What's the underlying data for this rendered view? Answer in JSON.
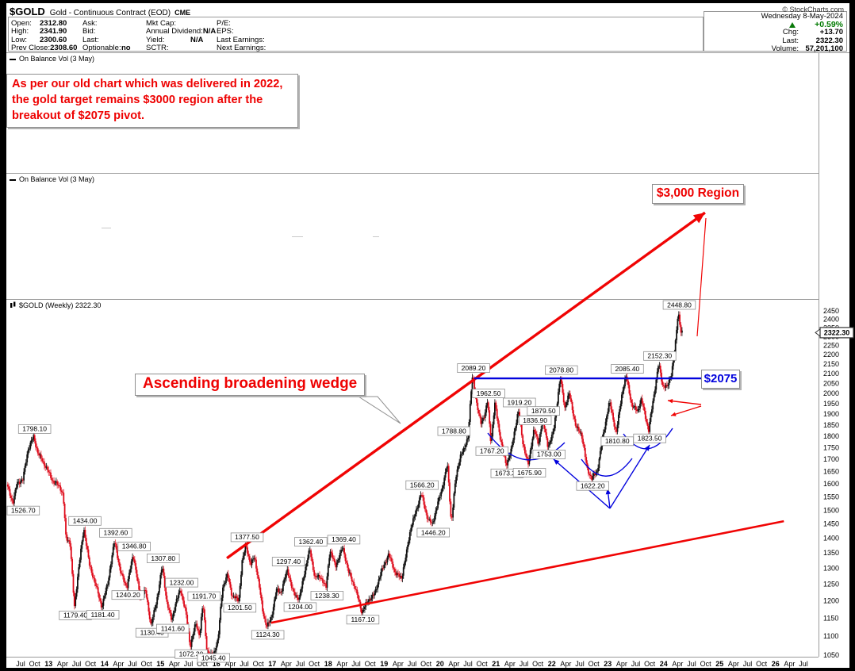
{
  "header": {
    "symbol": "$GOLD",
    "name": "Gold - Continuous Contract (EOD)",
    "exchange": "CME",
    "copyright": "© StockCharts.com",
    "date": "Wednesday 8-May-2024",
    "change_pct": "+0.59%",
    "col1": [
      {
        "label": "Open:",
        "value": "2312.80"
      },
      {
        "label": "High:",
        "value": "2341.90"
      },
      {
        "label": "Low:",
        "value": "2300.60"
      },
      {
        "label": "Prev Close:",
        "value": "2308.60"
      }
    ],
    "col2": [
      {
        "label": "Ask:",
        "value": ""
      },
      {
        "label": "Bid:",
        "value": ""
      },
      {
        "label": "Last:",
        "value": ""
      },
      {
        "label": "Optionable:",
        "value": "no"
      }
    ],
    "col3": [
      {
        "label": "Mkt Cap:",
        "value": ""
      },
      {
        "label": "Annual Dividend:",
        "value": "N/A"
      },
      {
        "label": "Yield:",
        "value": "N/A"
      },
      {
        "label": "SCTR:",
        "value": ""
      }
    ],
    "col4": [
      {
        "label": "P/E:",
        "value": ""
      },
      {
        "label": "EPS:",
        "value": ""
      },
      {
        "label": "Last Earnings:",
        "value": ""
      },
      {
        "label": "Next Earnings:",
        "value": ""
      }
    ],
    "chg_label": "Chg:",
    "chg_value": "+13.70",
    "last_label": "Last:",
    "last_value": "2322.30",
    "vol_label": "Volume:",
    "vol_value": "57,201,100"
  },
  "panels": {
    "obv1": "On Balance Vol (3 May)",
    "obv2": "On Balance Vol (3 May)",
    "price": "$GOLD (Weekly) 2322.30"
  },
  "annotations": {
    "note1": "As per our old chart which was delivered in 2022,",
    "note2": "the gold target remains $3000 region after the",
    "note3": "breakout of $2075 pivot.",
    "region": "$3,000 Region",
    "wedge": "Ascending broadening wedge",
    "pivot": "$2075",
    "last_price_tag": "2322.30"
  },
  "colors": {
    "annotation_red": "#f00404",
    "candle_red": "#dd0414",
    "candle_black": "#111111",
    "annotation_blue": "#0202dd",
    "green": "#0a7a0a"
  },
  "chart_data": {
    "type": "candlestick",
    "instrument": "$GOLD Gold - Continuous Contract (EOD) CME",
    "interval": "weekly",
    "scale": "log",
    "last_close": 2322.3,
    "y_axis": {
      "ticks": [
        2450,
        2400,
        2350,
        2300,
        2250,
        2200,
        2150,
        2100,
        2050,
        2000,
        1950,
        1900,
        1850,
        1800,
        1750,
        1700,
        1650,
        1600,
        1550,
        1500,
        1450,
        1400,
        1350,
        1300,
        1250,
        1200,
        1150,
        1100,
        1050
      ]
    },
    "x_axis": {
      "start_t": 2012.5,
      "step": 0.25,
      "labels": [
        "Jul",
        "Oct",
        "13",
        "Apr",
        "Jul",
        "Oct",
        "14",
        "Apr",
        "Jul",
        "Oct",
        "15",
        "Apr",
        "Jul",
        "Oct",
        "16",
        "Apr",
        "Jul",
        "Oct",
        "17",
        "Apr",
        "Jul",
        "Oct",
        "18",
        "Apr",
        "Jul",
        "Oct",
        "19",
        "Apr",
        "Jul",
        "Oct",
        "20",
        "Apr",
        "Jul",
        "Oct",
        "21",
        "Apr",
        "Jul",
        "Oct",
        "22",
        "Apr",
        "Jul",
        "Oct",
        "23",
        "Apr",
        "Jul",
        "Oct",
        "24",
        "Apr",
        "Jul",
        "Oct",
        "25",
        "Apr",
        "Jul",
        "Oct",
        "26",
        "Apr",
        "Jul"
      ]
    },
    "anchors": [
      [
        2012.27,
        1598
      ],
      [
        2012.38,
        1526.7
      ],
      [
        2012.46,
        1605
      ],
      [
        2012.56,
        1617
      ],
      [
        2012.65,
        1740
      ],
      [
        2012.75,
        1798.1
      ],
      [
        2012.83,
        1725
      ],
      [
        2012.92,
        1690
      ],
      [
        2013.0,
        1655
      ],
      [
        2013.1,
        1610
      ],
      [
        2013.22,
        1590
      ],
      [
        2013.28,
        1555
      ],
      [
        2013.33,
        1400
      ],
      [
        2013.4,
        1390
      ],
      [
        2013.48,
        1179.4
      ],
      [
        2013.55,
        1290
      ],
      [
        2013.65,
        1434.0
      ],
      [
        2013.75,
        1310
      ],
      [
        2013.85,
        1255
      ],
      [
        2013.97,
        1181.4
      ],
      [
        2014.08,
        1255
      ],
      [
        2014.2,
        1392.6
      ],
      [
        2014.3,
        1290
      ],
      [
        2014.42,
        1240.2
      ],
      [
        2014.53,
        1346.8
      ],
      [
        2014.65,
        1215
      ],
      [
        2014.75,
        1230
      ],
      [
        2014.85,
        1130.4
      ],
      [
        2014.95,
        1195
      ],
      [
        2015.05,
        1307.8
      ],
      [
        2015.13,
        1200
      ],
      [
        2015.22,
        1141.6
      ],
      [
        2015.3,
        1200
      ],
      [
        2015.38,
        1232.0
      ],
      [
        2015.47,
        1170
      ],
      [
        2015.55,
        1072.3
      ],
      [
        2015.65,
        1135
      ],
      [
        2015.72,
        1103
      ],
      [
        2015.78,
        1191.7
      ],
      [
        2015.85,
        1062
      ],
      [
        2015.95,
        1045.4
      ],
      [
        2016.05,
        1090
      ],
      [
        2016.13,
        1240
      ],
      [
        2016.22,
        1280
      ],
      [
        2016.3,
        1215
      ],
      [
        2016.42,
        1201.5
      ],
      [
        2016.48,
        1320
      ],
      [
        2016.55,
        1377.5
      ],
      [
        2016.63,
        1310
      ],
      [
        2016.7,
        1340
      ],
      [
        2016.78,
        1250
      ],
      [
        2016.85,
        1170
      ],
      [
        2016.92,
        1124.3
      ],
      [
        2017.0,
        1150
      ],
      [
        2017.1,
        1235
      ],
      [
        2017.18,
        1226
      ],
      [
        2017.29,
        1297.4
      ],
      [
        2017.38,
        1230
      ],
      [
        2017.5,
        1204.0
      ],
      [
        2017.6,
        1290
      ],
      [
        2017.69,
        1362.4
      ],
      [
        2017.78,
        1270
      ],
      [
        2017.88,
        1275
      ],
      [
        2017.98,
        1238.3
      ],
      [
        2018.05,
        1360
      ],
      [
        2018.15,
        1307
      ],
      [
        2018.28,
        1369.4
      ],
      [
        2018.38,
        1290
      ],
      [
        2018.5,
        1240
      ],
      [
        2018.62,
        1167.1
      ],
      [
        2018.73,
        1200
      ],
      [
        2018.85,
        1220
      ],
      [
        2018.95,
        1280
      ],
      [
        2019.1,
        1346
      ],
      [
        2019.22,
        1285
      ],
      [
        2019.33,
        1269
      ],
      [
        2019.42,
        1350
      ],
      [
        2019.5,
        1440
      ],
      [
        2019.6,
        1500
      ],
      [
        2019.68,
        1566.2
      ],
      [
        2019.78,
        1480
      ],
      [
        2019.88,
        1446.2
      ],
      [
        2019.97,
        1520
      ],
      [
        2020.05,
        1575
      ],
      [
        2020.15,
        1680
      ],
      [
        2020.22,
        1451
      ],
      [
        2020.3,
        1620
      ],
      [
        2020.38,
        1715
      ],
      [
        2020.45,
        1740
      ],
      [
        2020.52,
        1800
      ],
      [
        2020.6,
        2089.2
      ],
      [
        2020.68,
        1940
      ],
      [
        2020.75,
        1857
      ],
      [
        2020.82,
        1900
      ],
      [
        2020.87,
        1962.5
      ],
      [
        2020.93,
        1767.2
      ],
      [
        2021.0,
        1950
      ],
      [
        2021.08,
        1815
      ],
      [
        2021.2,
        1673.3
      ],
      [
        2021.3,
        1745
      ],
      [
        2021.42,
        1919.2
      ],
      [
        2021.5,
        1770
      ],
      [
        2021.6,
        1675.9
      ],
      [
        2021.7,
        1836.9
      ],
      [
        2021.78,
        1760
      ],
      [
        2021.85,
        1879.5
      ],
      [
        2021.95,
        1753.0
      ],
      [
        2022.05,
        1820
      ],
      [
        2022.17,
        2078.8
      ],
      [
        2022.25,
        1930
      ],
      [
        2022.33,
        1998
      ],
      [
        2022.45,
        1840
      ],
      [
        2022.55,
        1810
      ],
      [
        2022.65,
        1660
      ],
      [
        2022.73,
        1622.2
      ],
      [
        2022.83,
        1650
      ],
      [
        2022.92,
        1780
      ],
      [
        2023.05,
        1960
      ],
      [
        2023.17,
        1810.8
      ],
      [
        2023.28,
        2010
      ],
      [
        2023.35,
        2085.4
      ],
      [
        2023.45,
        1940
      ],
      [
        2023.55,
        1915
      ],
      [
        2023.62,
        1970
      ],
      [
        2023.75,
        1823.5
      ],
      [
        2023.85,
        2000
      ],
      [
        2023.93,
        2152.3
      ],
      [
        2024.0,
        2040
      ],
      [
        2024.08,
        2030
      ],
      [
        2024.15,
        2090
      ],
      [
        2024.22,
        2222
      ],
      [
        2024.28,
        2448.8
      ],
      [
        2024.33,
        2322.3
      ]
    ],
    "price_labels": [
      {
        "text": "1526.70",
        "t": 2012.38,
        "p": 1526.7,
        "side": "below"
      },
      {
        "text": "1798.10",
        "t": 2012.75,
        "p": 1798.1,
        "side": "above"
      },
      {
        "text": "1179.40",
        "t": 2013.48,
        "p": 1179.4,
        "side": "below"
      },
      {
        "text": "1434.00",
        "t": 2013.65,
        "p": 1434.0,
        "side": "above"
      },
      {
        "text": "1181.40",
        "t": 2013.97,
        "p": 1181.4,
        "side": "below"
      },
      {
        "text": "1392.60",
        "t": 2014.2,
        "p": 1392.6,
        "side": "above"
      },
      {
        "text": "1240.20",
        "t": 2014.42,
        "p": 1240.2,
        "side": "below"
      },
      {
        "text": "1346.80",
        "t": 2014.53,
        "p": 1346.8,
        "side": "above"
      },
      {
        "text": "1130.40",
        "t": 2014.85,
        "p": 1130.4,
        "side": "below"
      },
      {
        "text": "1307.80",
        "t": 2015.05,
        "p": 1307.8,
        "side": "above"
      },
      {
        "text": "1141.60",
        "t": 2015.22,
        "p": 1141.6,
        "side": "below"
      },
      {
        "text": "1232.00",
        "t": 2015.38,
        "p": 1232.0,
        "side": "above"
      },
      {
        "text": "1072.30",
        "t": 2015.55,
        "p": 1072.3,
        "side": "below"
      },
      {
        "text": "1191.70",
        "t": 2015.78,
        "p": 1191.7,
        "side": "above"
      },
      {
        "text": "1045.40",
        "t": 2015.95,
        "p": 1045.4,
        "side": "below"
      },
      {
        "text": "1201.50",
        "t": 2016.42,
        "p": 1201.5,
        "side": "below"
      },
      {
        "text": "1377.50",
        "t": 2016.55,
        "p": 1377.5,
        "side": "above"
      },
      {
        "text": "1124.30",
        "t": 2016.92,
        "p": 1124.3,
        "side": "below"
      },
      {
        "text": "1297.40",
        "t": 2017.29,
        "p": 1297.4,
        "side": "above"
      },
      {
        "text": "1204.00",
        "t": 2017.5,
        "p": 1204.0,
        "side": "below"
      },
      {
        "text": "1362.40",
        "t": 2017.69,
        "p": 1362.4,
        "side": "above"
      },
      {
        "text": "1238.30",
        "t": 2017.98,
        "p": 1238.3,
        "side": "below"
      },
      {
        "text": "1369.40",
        "t": 2018.28,
        "p": 1369.4,
        "side": "above"
      },
      {
        "text": "1167.10",
        "t": 2018.62,
        "p": 1167.1,
        "side": "below"
      },
      {
        "text": "1566.20",
        "t": 2019.68,
        "p": 1566.2,
        "side": "above"
      },
      {
        "text": "1446.20",
        "t": 2019.88,
        "p": 1446.2,
        "side": "below"
      },
      {
        "text": "1788.80",
        "t": 2020.25,
        "p": 1788.8,
        "side": "above"
      },
      {
        "text": "2089.20",
        "t": 2020.6,
        "p": 2089.2,
        "side": "above"
      },
      {
        "text": "1962.50",
        "t": 2020.87,
        "p": 1962.5,
        "side": "above"
      },
      {
        "text": "1767.20",
        "t": 2020.93,
        "p": 1767.2,
        "side": "below"
      },
      {
        "text": "1673.30",
        "t": 2021.2,
        "p": 1673.3,
        "side": "below"
      },
      {
        "text": "1919.20",
        "t": 2021.42,
        "p": 1919.2,
        "side": "above"
      },
      {
        "text": "1675.90",
        "t": 2021.6,
        "p": 1675.9,
        "side": "below"
      },
      {
        "text": "1836.90",
        "t": 2021.7,
        "p": 1836.9,
        "side": "above"
      },
      {
        "text": "1879.50",
        "t": 2021.85,
        "p": 1879.5,
        "side": "above"
      },
      {
        "text": "1753.00",
        "t": 2021.95,
        "p": 1753.0,
        "side": "below"
      },
      {
        "text": "2078.80",
        "t": 2022.17,
        "p": 2078.8,
        "side": "above"
      },
      {
        "text": "1622.20",
        "t": 2022.73,
        "p": 1622.2,
        "side": "below"
      },
      {
        "text": "1810.80",
        "t": 2023.17,
        "p": 1810.8,
        "side": "below"
      },
      {
        "text": "2085.40",
        "t": 2023.35,
        "p": 2085.4,
        "side": "above"
      },
      {
        "text": "1823.50",
        "t": 2023.75,
        "p": 1823.5,
        "side": "below"
      },
      {
        "text": "2152.30",
        "t": 2023.93,
        "p": 2152.3,
        "side": "above"
      },
      {
        "text": "2448.80",
        "t": 2024.28,
        "p": 2448.8,
        "side": "above"
      }
    ],
    "trendlines": [
      {
        "name": "wedge-upper-resistance",
        "t1": 2016.19,
        "p1": 1333,
        "t2": 2024.74,
        "p2": 3120,
        "width": 3.4,
        "arrow": true,
        "color": "red"
      },
      {
        "name": "wedge-lower-support",
        "t1": 2016.98,
        "p1": 1137,
        "t2": 2026.15,
        "p2": 1460,
        "width": 2.6,
        "arrow": false,
        "color": "red"
      },
      {
        "name": "pivot-level-2075",
        "t1": 2020.61,
        "p1": 2075,
        "t2": 2024.7,
        "p2": 2075,
        "width": 2.4,
        "arrow": false,
        "color": "blue"
      }
    ],
    "pivot_level": 2075,
    "target": "$3,000 Region"
  }
}
